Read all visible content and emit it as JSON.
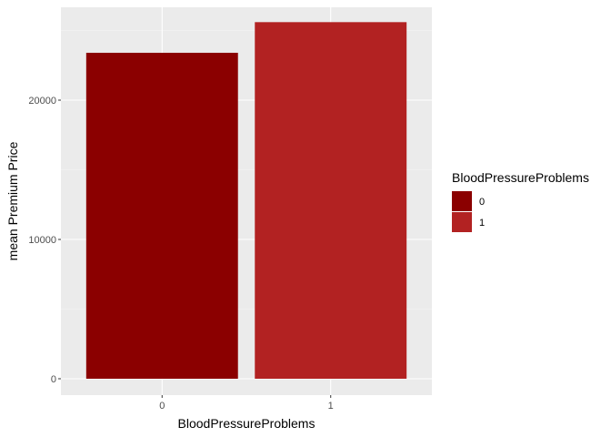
{
  "chart_data": {
    "type": "bar",
    "categories": [
      "0",
      "1"
    ],
    "values": [
      23400,
      25600
    ],
    "xlabel": "BloodPressureProblems",
    "ylabel": "mean Premium Price",
    "ylim": [
      0,
      26500
    ],
    "yticks": [
      0,
      10000,
      20000
    ],
    "ytick_labels": [
      "0",
      "10000",
      "20000"
    ],
    "colors": [
      "#8B0000",
      "#B22222"
    ],
    "grid": true,
    "legend": {
      "title": "BloodPressureProblems",
      "entries": [
        "0",
        "1"
      ],
      "placement": "right"
    }
  }
}
